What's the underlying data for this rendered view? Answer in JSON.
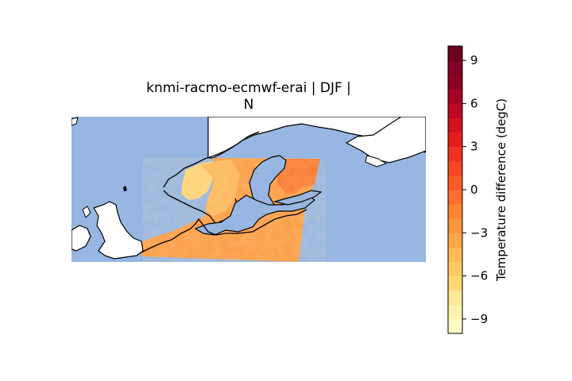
{
  "title": {
    "line1": "knmi-racmo-ecmwf-erai | DJF |",
    "line2": "N"
  },
  "map": {
    "projection": "cylindrical",
    "ocean_color": "#97b6e1",
    "land_color": "#ffffff",
    "coastline_color": "#000000",
    "region": "Northern Europe / Scandinavia / Baltic",
    "field": {
      "name": "Temperature difference",
      "units": "degC",
      "dominant_value": 0.5,
      "range_shown": [
        -7,
        3
      ]
    }
  },
  "colorbar": {
    "label": "Temperature difference (degC)",
    "cmap": "YlOrRd",
    "vmin": -10,
    "vmax": 10,
    "levels": 20,
    "ticks": [
      {
        "value": 9,
        "label": "9"
      },
      {
        "value": 6,
        "label": "6"
      },
      {
        "value": 3,
        "label": "3"
      },
      {
        "value": 0,
        "label": "0"
      },
      {
        "value": -3,
        "label": "−3"
      },
      {
        "value": -6,
        "label": "−6"
      },
      {
        "value": -9,
        "label": "−9"
      }
    ],
    "colors": [
      "#ffffcc",
      "#fff3b0",
      "#ffe896",
      "#fed976",
      "#feca66",
      "#febb56",
      "#fea848",
      "#fd963e",
      "#fd8535",
      "#fc6f2e",
      "#fc5b27",
      "#f74624",
      "#ee3221",
      "#e31e1d",
      "#d1131f",
      "#bd0825",
      "#a60026",
      "#8c0026",
      "#800026",
      "#6b0021"
    ]
  }
}
